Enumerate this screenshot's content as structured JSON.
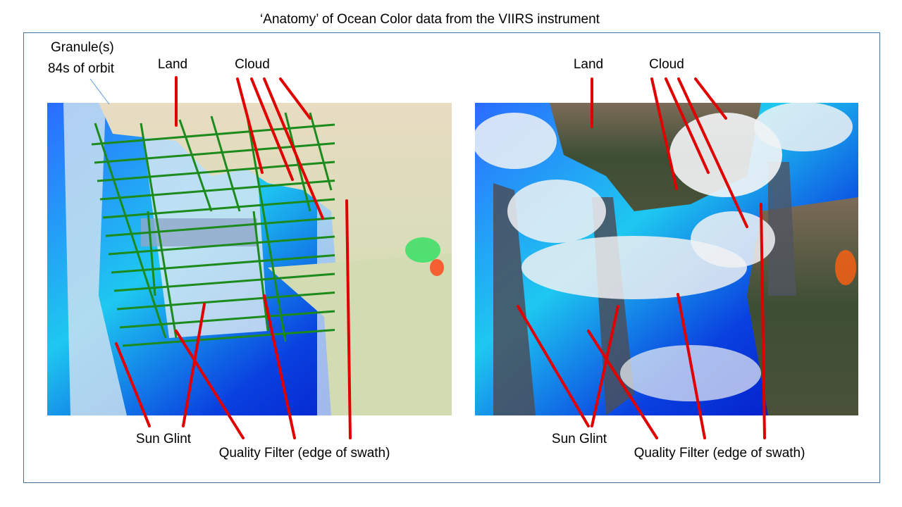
{
  "title": "‘Anatomy’ of Ocean Color data from the VIIRS instrument",
  "left_panel": {
    "granule": "Granule(s)",
    "granule_note": "84s of orbit",
    "land": "Land",
    "cloud": "Cloud",
    "sun_glint": "Sun Glint",
    "quality_filter": "Quality Filter (edge of swath)"
  },
  "right_panel": {
    "land": "Land",
    "cloud": "Cloud",
    "sun_glint": "Sun Glint",
    "quality_filter": "Quality Filter (edge of swath)"
  }
}
